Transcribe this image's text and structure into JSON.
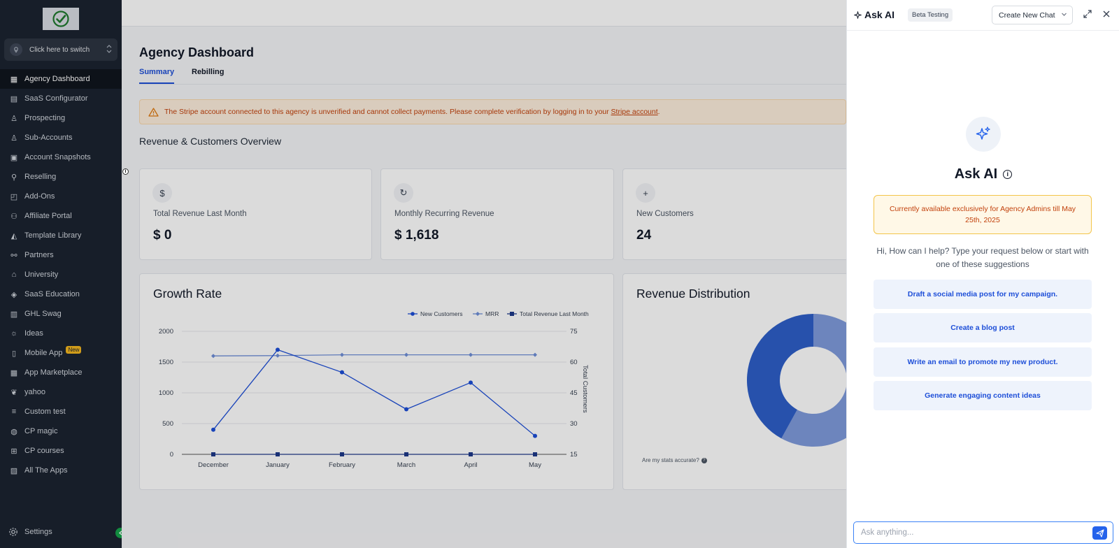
{
  "sidebar": {
    "switcher_label": "Click here to switch",
    "items": [
      {
        "label": "Agency Dashboard",
        "icon": "dashboard-icon"
      },
      {
        "label": "SaaS Configurator",
        "icon": "chart-icon"
      },
      {
        "label": "Prospecting",
        "icon": "person-search-icon"
      },
      {
        "label": "Sub-Accounts",
        "icon": "user-icon"
      },
      {
        "label": "Account Snapshots",
        "icon": "snapshot-icon"
      },
      {
        "label": "Reselling",
        "icon": "network-icon"
      },
      {
        "label": "Add-Ons",
        "icon": "bag-icon"
      },
      {
        "label": "Affiliate Portal",
        "icon": "users-icon"
      },
      {
        "label": "Template Library",
        "icon": "shapes-icon"
      },
      {
        "label": "Partners",
        "icon": "handshake-icon"
      },
      {
        "label": "University",
        "icon": "graduation-icon"
      },
      {
        "label": "SaaS Education",
        "icon": "box-icon"
      },
      {
        "label": "GHL Swag",
        "icon": "store-icon"
      },
      {
        "label": "Ideas",
        "icon": "lightbulb-icon"
      },
      {
        "label": "Mobile App",
        "icon": "phone-icon",
        "badge": "New"
      },
      {
        "label": "App Marketplace",
        "icon": "grid-icon"
      },
      {
        "label": "yahoo",
        "icon": "leaf-icon"
      },
      {
        "label": "Custom test",
        "icon": "text-icon"
      },
      {
        "label": "CP magic",
        "icon": "globe-icon"
      },
      {
        "label": "CP courses",
        "icon": "windows-icon"
      },
      {
        "label": "All The Apps",
        "icon": "image-icon"
      }
    ],
    "settings_label": "Settings"
  },
  "main": {
    "title": "Agency Dashboard",
    "tabs": [
      {
        "label": "Summary"
      },
      {
        "label": "Rebilling"
      }
    ],
    "warning": {
      "text": "The Stripe account connected to this agency is unverified and cannot collect payments. Please complete verification by logging in to your ",
      "link": "Stripe account",
      "tail": "."
    },
    "section_title": "Revenue & Customers Overview",
    "info_mark": "i",
    "stats": [
      {
        "icon": "$",
        "label": "Total Revenue Last Month",
        "value": "$ 0"
      },
      {
        "icon": "↻",
        "label": "Monthly Recurring Revenue",
        "value": "$ 1,618"
      },
      {
        "icon": "+",
        "label": "New Customers",
        "value": "24"
      }
    ],
    "growth_title": "Growth Rate",
    "revenue_title": "Revenue Distribution",
    "stats_question": "Are my stats accurate?",
    "stats_question_mark": "?"
  },
  "chart_data": [
    {
      "type": "line",
      "title": "Growth Rate",
      "categories": [
        "December",
        "January",
        "February",
        "March",
        "April",
        "May"
      ],
      "y_left_ticks": [
        "0",
        "500",
        "1000",
        "1500",
        "2000"
      ],
      "y_left_range": [
        0,
        2000
      ],
      "y_right_ticks": [
        "15",
        "30",
        "45",
        "60",
        "75"
      ],
      "y_right_range": [
        15,
        75
      ],
      "y_right_label": "Total Customers",
      "series": [
        {
          "name": "New Customers",
          "axis": "right",
          "values": [
            27,
            66,
            55,
            37,
            50,
            24
          ],
          "color": "#1d4ed8",
          "marker": "circle"
        },
        {
          "name": "MRR",
          "axis": "left",
          "values": [
            1600,
            1605,
            1618,
            1618,
            1618,
            1618
          ],
          "color": "#6f8fd8",
          "marker": "diamond"
        },
        {
          "name": "Total Revenue Last Month",
          "axis": "left",
          "values": [
            0,
            0,
            0,
            0,
            0,
            0
          ],
          "color": "#1e3a8a",
          "marker": "square"
        }
      ],
      "grid": true,
      "legend": "top-right"
    },
    {
      "type": "pie",
      "title": "Revenue Distribution",
      "donut": true,
      "slices": [
        {
          "value": 58,
          "color": "#7f9bdc"
        },
        {
          "value": 42,
          "color": "#2e5fc9"
        }
      ]
    }
  ],
  "ai_panel": {
    "title": "Ask AI",
    "beta": "Beta Testing",
    "new_chat": "Create New Chat",
    "heading": "Ask AI",
    "info_mark": "i",
    "notice": "Currently available exclusively for Agency Admins till May 25th, 2025",
    "greeting": "Hi, How can I help? Type your request below or start with one of these suggestions",
    "suggestions": [
      "Draft a social media post for my campaign.",
      "Create a blog post",
      "Write an email to promote my new product.",
      "Generate engaging content ideas"
    ],
    "input_placeholder": "Ask anything..."
  },
  "colors": {
    "sidebar_bg": "#1b2330",
    "accent": "#1d4ed8",
    "warning_text": "#c2410c",
    "notice_border": "#f3c54a"
  }
}
